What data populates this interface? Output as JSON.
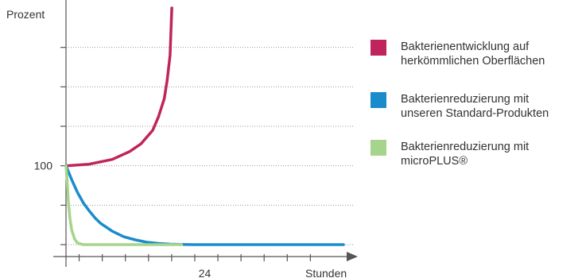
{
  "chart_data": {
    "type": "line",
    "ylabel": "Prozent",
    "xlabel": "Stunden",
    "x_tick_labels": [
      {
        "x": 24,
        "label": "24"
      }
    ],
    "y_tick_labels": [
      {
        "y": 100,
        "label": "100"
      }
    ],
    "xlim": [
      0,
      48
    ],
    "ylim": [
      0,
      300
    ],
    "grid": true,
    "legend_position": "right",
    "series": [
      {
        "name": "Bakterienentwicklung auf herkömmlichen Oberflächen",
        "color": "#c0245c",
        "points": [
          [
            0,
            100
          ],
          [
            4,
            102
          ],
          [
            8,
            108
          ],
          [
            11,
            118
          ],
          [
            13,
            128
          ],
          [
            15,
            145
          ],
          [
            16,
            162
          ],
          [
            17,
            185
          ],
          [
            17.5,
            208
          ],
          [
            18,
            240
          ],
          [
            18.3,
            300
          ]
        ]
      },
      {
        "name": "Bakterienreduzierung mit unseren Standard-Produkten",
        "color": "#1a8ccc",
        "points": [
          [
            0,
            100
          ],
          [
            1,
            82
          ],
          [
            2,
            66
          ],
          [
            3,
            53
          ],
          [
            4,
            43
          ],
          [
            5,
            34
          ],
          [
            6,
            27
          ],
          [
            8,
            17
          ],
          [
            10,
            10
          ],
          [
            12,
            6
          ],
          [
            14,
            3
          ],
          [
            16,
            1.5
          ],
          [
            18,
            0.6
          ],
          [
            20,
            0.2
          ],
          [
            22,
            0
          ],
          [
            48,
            0
          ]
        ]
      },
      {
        "name": "Bakterienreduzierung mit microPLUS®",
        "color": "#a6d48a",
        "points": [
          [
            0,
            100
          ],
          [
            0.2,
            80
          ],
          [
            0.4,
            55
          ],
          [
            0.7,
            32
          ],
          [
            1,
            18
          ],
          [
            1.5,
            7
          ],
          [
            2,
            2
          ],
          [
            3,
            0
          ],
          [
            20,
            0
          ]
        ]
      }
    ]
  },
  "legend": {
    "items": [
      {
        "lines": [
          "Bakterienentwicklung auf",
          "herkömmlichen Oberflächen"
        ],
        "color": "#c0245c"
      },
      {
        "lines": [
          "Bakterienreduzierung mit",
          "unseren Standard-Produkten"
        ],
        "color": "#1a8ccc"
      },
      {
        "lines": [
          "Bakterienreduzierung mit",
          "microPLUS®"
        ],
        "color": "#a6d48a"
      }
    ]
  }
}
